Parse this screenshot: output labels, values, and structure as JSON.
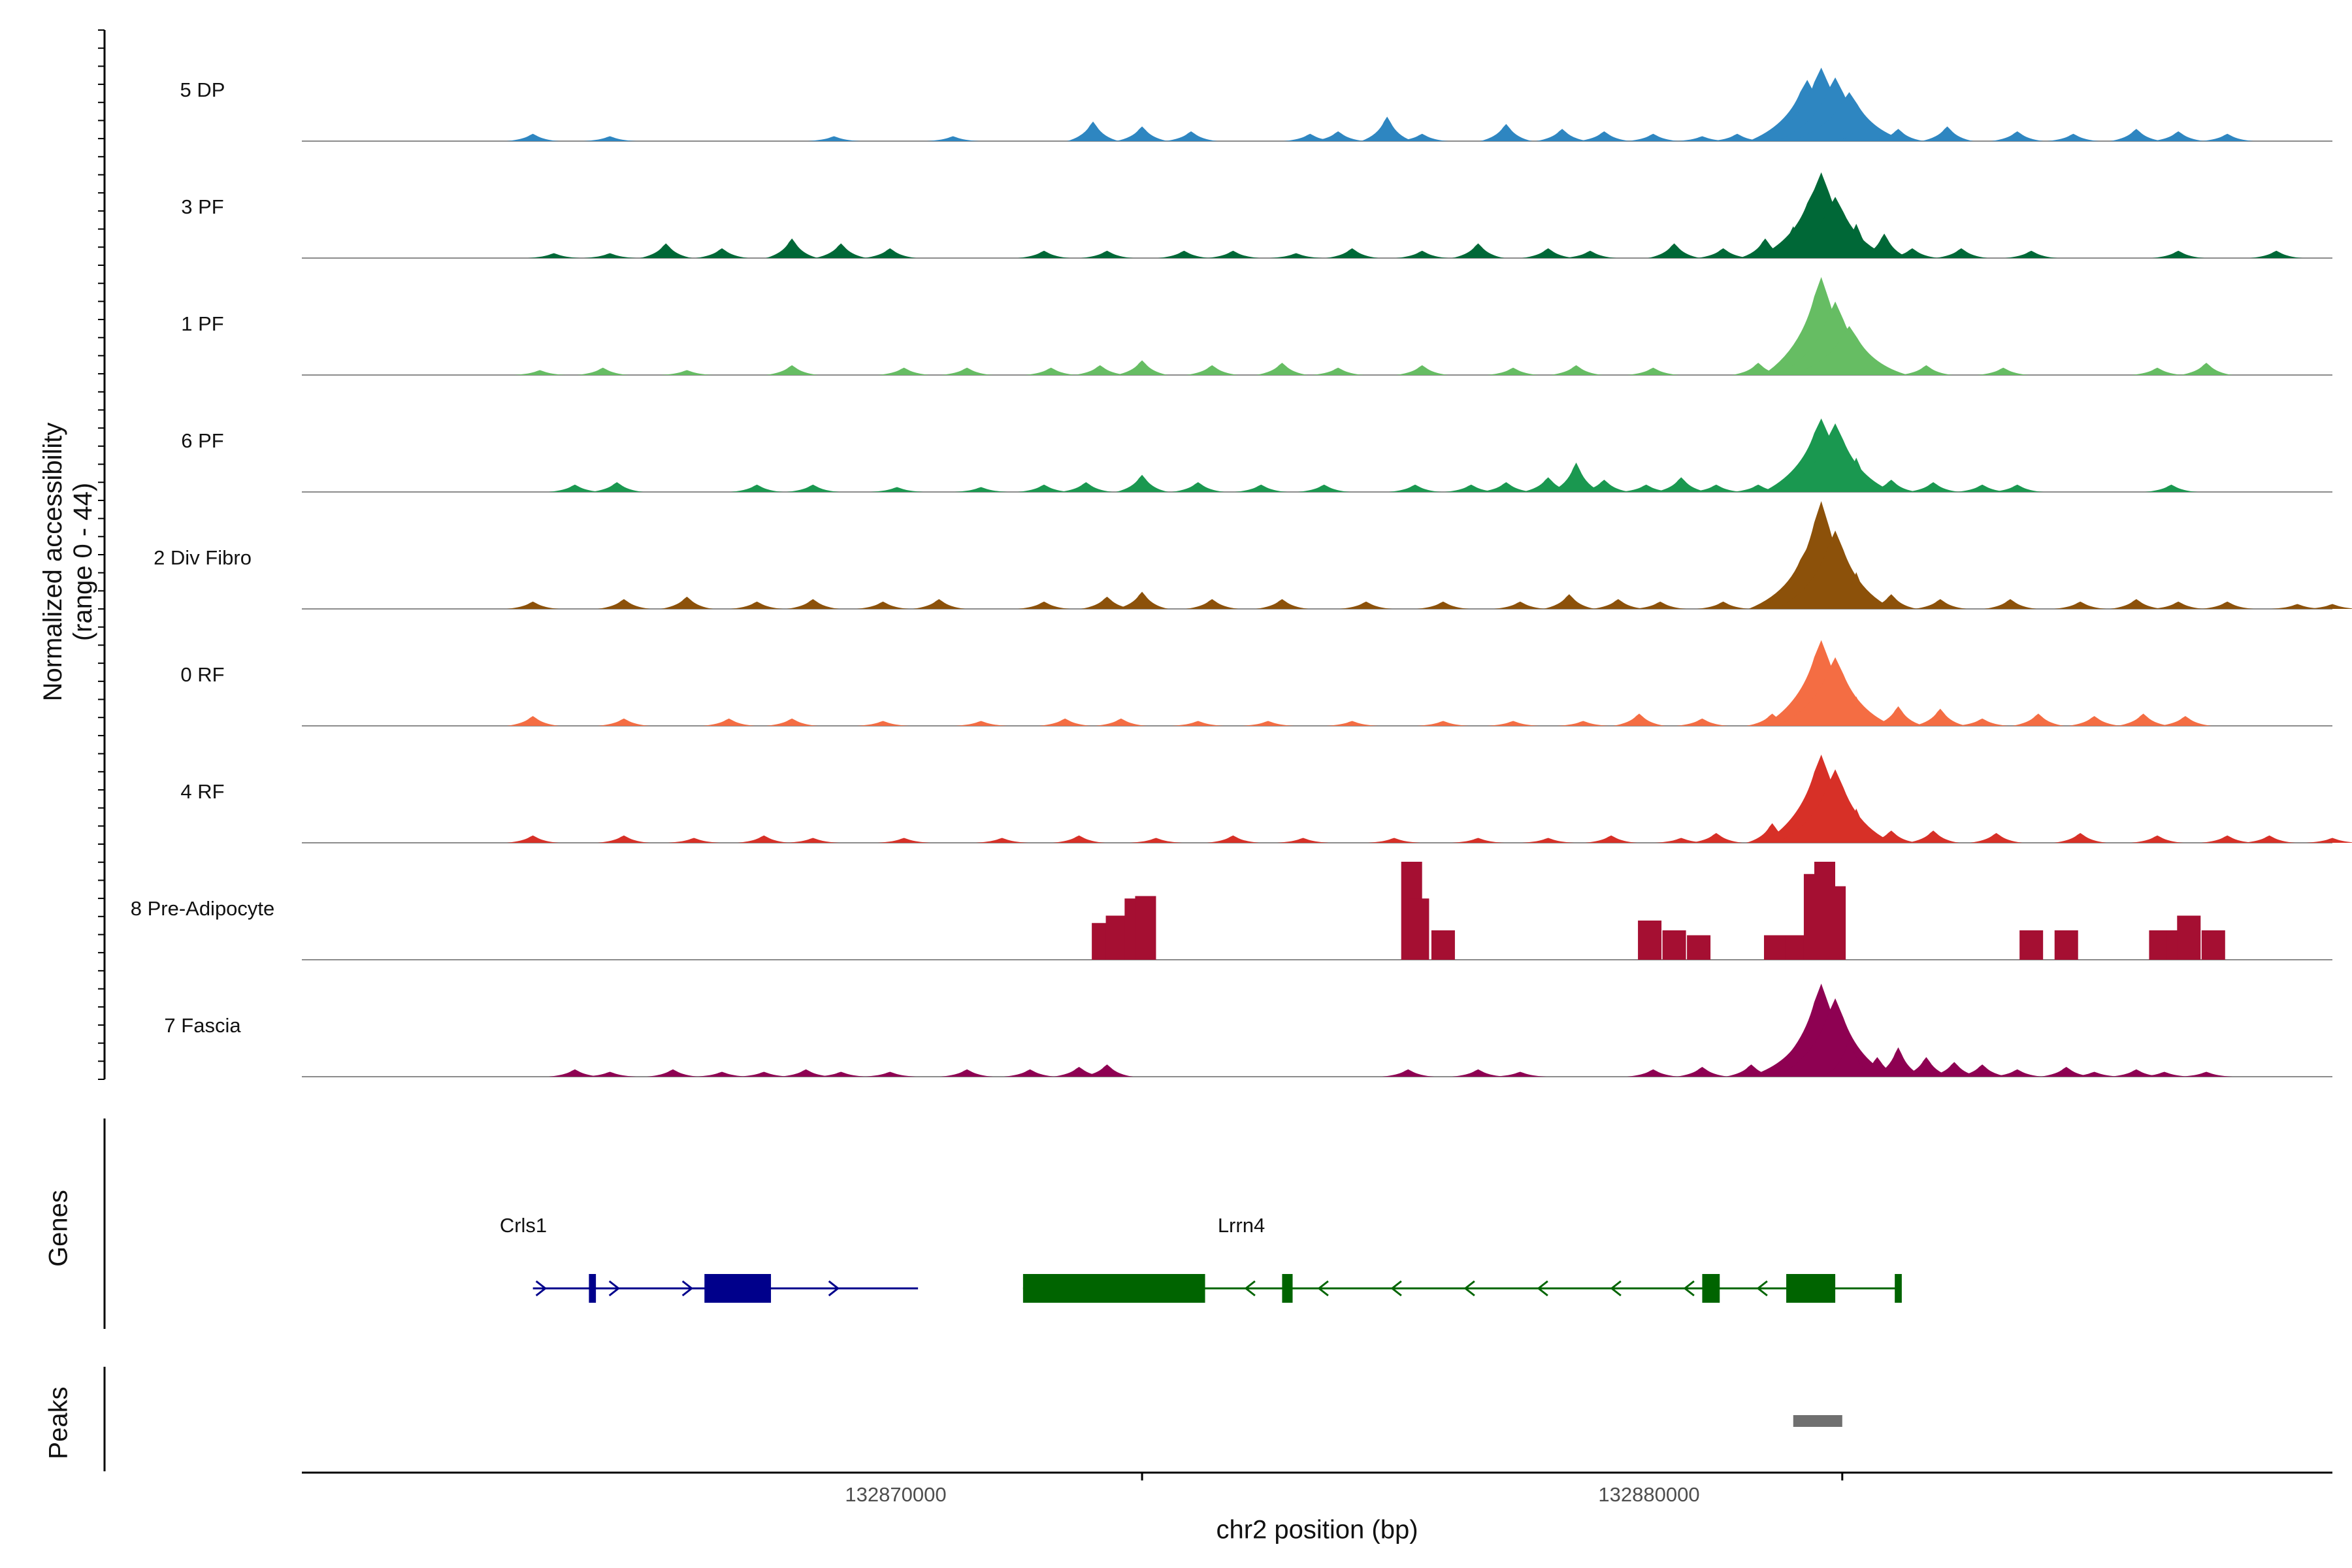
{
  "chart_data": {
    "type": "area",
    "title": "",
    "ylabel": "Normalized accessibility\n(range 0 - 44)",
    "ylabel_line1": "Normalized accessibility",
    "ylabel_line2": "(range 0 - 44)",
    "xlabel": "chr2 position (bp)",
    "xlim": [
      132858000,
      132887000
    ],
    "ylim": [
      0,
      44
    ],
    "xticks": [
      132870000,
      132880000
    ],
    "xtick_labels": [
      "132870000",
      "132880000"
    ],
    "series": [
      {
        "name": "5 DP",
        "color": "#2E86C1",
        "points": [
          [
            132861300,
            3
          ],
          [
            132862400,
            2
          ],
          [
            132865600,
            2
          ],
          [
            132867300,
            2
          ],
          [
            132869300,
            8
          ],
          [
            132870000,
            6
          ],
          [
            132870700,
            4
          ],
          [
            132872400,
            3
          ],
          [
            132872800,
            4
          ],
          [
            132873500,
            10
          ],
          [
            132874000,
            3
          ],
          [
            132875200,
            7
          ],
          [
            132876000,
            5
          ],
          [
            132876600,
            4
          ],
          [
            132877300,
            3
          ],
          [
            132878000,
            2
          ],
          [
            132878500,
            3
          ],
          [
            132879200,
            8
          ],
          [
            132879500,
            25
          ],
          [
            132879700,
            30
          ],
          [
            132879900,
            26
          ],
          [
            132880100,
            20
          ],
          [
            132880300,
            8
          ],
          [
            132880800,
            5
          ],
          [
            132881500,
            6
          ],
          [
            132882500,
            4
          ],
          [
            132883300,
            3
          ],
          [
            132884200,
            5
          ],
          [
            132884800,
            4
          ],
          [
            132885500,
            3
          ]
        ]
      },
      {
        "name": "3 PF",
        "color": "#006837",
        "points": [
          [
            132861600,
            2
          ],
          [
            132862400,
            2
          ],
          [
            132863200,
            6
          ],
          [
            132864000,
            4
          ],
          [
            132865000,
            8
          ],
          [
            132865700,
            6
          ],
          [
            132866400,
            4
          ],
          [
            132868600,
            3
          ],
          [
            132869500,
            3
          ],
          [
            132870600,
            3
          ],
          [
            132871300,
            3
          ],
          [
            132872200,
            2
          ],
          [
            132873000,
            4
          ],
          [
            132874000,
            3
          ],
          [
            132874800,
            6
          ],
          [
            132875800,
            4
          ],
          [
            132876400,
            3
          ],
          [
            132877600,
            6
          ],
          [
            132878300,
            4
          ],
          [
            132878900,
            8
          ],
          [
            132879300,
            13
          ],
          [
            132879600,
            28
          ],
          [
            132879700,
            35
          ],
          [
            132879900,
            25
          ],
          [
            132880200,
            14
          ],
          [
            132880600,
            10
          ],
          [
            132881000,
            4
          ],
          [
            132881700,
            4
          ],
          [
            132882700,
            3
          ],
          [
            132884800,
            3
          ],
          [
            132886200,
            3
          ]
        ]
      },
      {
        "name": "1 PF",
        "color": "#66BD63",
        "points": [
          [
            132861400,
            2
          ],
          [
            132862300,
            3
          ],
          [
            132863500,
            2
          ],
          [
            132865000,
            4
          ],
          [
            132866600,
            3
          ],
          [
            132867500,
            3
          ],
          [
            132868700,
            3
          ],
          [
            132869400,
            4
          ],
          [
            132870000,
            6
          ],
          [
            132871000,
            4
          ],
          [
            132872000,
            5
          ],
          [
            132872800,
            3
          ],
          [
            132874000,
            4
          ],
          [
            132875300,
            3
          ],
          [
            132876200,
            4
          ],
          [
            132877300,
            3
          ],
          [
            132878800,
            5
          ],
          [
            132879200,
            6
          ],
          [
            132879500,
            16
          ],
          [
            132879700,
            40
          ],
          [
            132879900,
            30
          ],
          [
            132880100,
            20
          ],
          [
            132880500,
            4
          ],
          [
            132881200,
            4
          ],
          [
            132882300,
            3
          ],
          [
            132884500,
            3
          ],
          [
            132885200,
            5
          ]
        ]
      },
      {
        "name": "6 PF",
        "color": "#1A9850",
        "points": [
          [
            132861900,
            3
          ],
          [
            132862500,
            4
          ],
          [
            132864500,
            3
          ],
          [
            132865300,
            3
          ],
          [
            132866500,
            2
          ],
          [
            132867700,
            2
          ],
          [
            132868600,
            3
          ],
          [
            132869200,
            4
          ],
          [
            132870000,
            7
          ],
          [
            132870800,
            4
          ],
          [
            132871700,
            3
          ],
          [
            132872600,
            3
          ],
          [
            132873900,
            3
          ],
          [
            132874700,
            3
          ],
          [
            132875200,
            4
          ],
          [
            132875800,
            6
          ],
          [
            132876200,
            12
          ],
          [
            132876600,
            5
          ],
          [
            132877200,
            3
          ],
          [
            132877700,
            6
          ],
          [
            132878200,
            3
          ],
          [
            132878800,
            3
          ],
          [
            132879300,
            9
          ],
          [
            132879700,
            30
          ],
          [
            132879900,
            28
          ],
          [
            132880200,
            14
          ],
          [
            132880700,
            5
          ],
          [
            132881300,
            4
          ],
          [
            132882000,
            3
          ],
          [
            132882500,
            3
          ],
          [
            132884700,
            3
          ]
        ]
      },
      {
        "name": "2 Div Fibro",
        "color": "#8C510A",
        "points": [
          [
            132861300,
            3
          ],
          [
            132862600,
            4
          ],
          [
            132863500,
            5
          ],
          [
            132864500,
            3
          ],
          [
            132865300,
            4
          ],
          [
            132866300,
            3
          ],
          [
            132867100,
            4
          ],
          [
            132868600,
            3
          ],
          [
            132869500,
            5
          ],
          [
            132870000,
            7
          ],
          [
            132871000,
            4
          ],
          [
            132872000,
            4
          ],
          [
            132873200,
            3
          ],
          [
            132874300,
            3
          ],
          [
            132875400,
            3
          ],
          [
            132876100,
            6
          ],
          [
            132876800,
            4
          ],
          [
            132877400,
            3
          ],
          [
            132878300,
            3
          ],
          [
            132879200,
            8
          ],
          [
            132879500,
            25
          ],
          [
            132879700,
            44
          ],
          [
            132879900,
            32
          ],
          [
            132880200,
            15
          ],
          [
            132880700,
            6
          ],
          [
            132881400,
            4
          ],
          [
            132882400,
            4
          ],
          [
            132883400,
            3
          ],
          [
            132884200,
            4
          ],
          [
            132884800,
            3
          ],
          [
            132885500,
            3
          ],
          [
            132886500,
            2
          ],
          [
            132887000,
            2
          ]
        ]
      },
      {
        "name": "0 RF",
        "color": "#F46D43",
        "points": [
          [
            132861300,
            4
          ],
          [
            132862600,
            3
          ],
          [
            132864100,
            3
          ],
          [
            132865000,
            3
          ],
          [
            132866300,
            2
          ],
          [
            132867700,
            2
          ],
          [
            132868900,
            3
          ],
          [
            132869700,
            3
          ],
          [
            132870800,
            2
          ],
          [
            132871800,
            2
          ],
          [
            132873000,
            2
          ],
          [
            132874300,
            2
          ],
          [
            132875300,
            2
          ],
          [
            132876300,
            2
          ],
          [
            132877100,
            5
          ],
          [
            132878000,
            3
          ],
          [
            132879000,
            5
          ],
          [
            132879400,
            12
          ],
          [
            132879700,
            35
          ],
          [
            132879900,
            28
          ],
          [
            132880200,
            12
          ],
          [
            132880800,
            8
          ],
          [
            132881400,
            7
          ],
          [
            132882000,
            3
          ],
          [
            132882800,
            5
          ],
          [
            132883600,
            4
          ],
          [
            132884300,
            5
          ],
          [
            132884900,
            4
          ]
        ]
      },
      {
        "name": "4 RF",
        "color": "#D73027",
        "points": [
          [
            132861300,
            3
          ],
          [
            132862600,
            3
          ],
          [
            132863600,
            2
          ],
          [
            132864600,
            3
          ],
          [
            132865300,
            2
          ],
          [
            132866600,
            2
          ],
          [
            132868000,
            2
          ],
          [
            132869100,
            3
          ],
          [
            132870200,
            2
          ],
          [
            132871300,
            3
          ],
          [
            132872300,
            2
          ],
          [
            132873600,
            2
          ],
          [
            132874800,
            2
          ],
          [
            132875800,
            2
          ],
          [
            132876700,
            3
          ],
          [
            132877700,
            2
          ],
          [
            132878200,
            4
          ],
          [
            132879000,
            8
          ],
          [
            132879400,
            12
          ],
          [
            132879700,
            36
          ],
          [
            132879900,
            30
          ],
          [
            132880200,
            14
          ],
          [
            132880700,
            5
          ],
          [
            132881300,
            5
          ],
          [
            132882200,
            4
          ],
          [
            132883400,
            4
          ],
          [
            132884500,
            3
          ],
          [
            132885500,
            3
          ],
          [
            132886100,
            3
          ],
          [
            132887000,
            2
          ]
        ]
      },
      {
        "name": "8 Pre-Adipocyte",
        "color": "#A50F32",
        "points": [
          [
            132869450,
            15
          ],
          [
            132869650,
            18
          ],
          [
            132869900,
            25
          ],
          [
            132870050,
            26
          ],
          [
            132873850,
            40
          ],
          [
            132873950,
            25
          ],
          [
            132874300,
            12
          ],
          [
            132877250,
            16
          ],
          [
            132877600,
            12
          ],
          [
            132877950,
            10
          ],
          [
            132879050,
            10
          ],
          [
            132879350,
            10
          ],
          [
            132879600,
            35
          ],
          [
            132879750,
            40
          ],
          [
            132879900,
            30
          ],
          [
            132882700,
            12
          ],
          [
            132883200,
            12
          ],
          [
            132884550,
            12
          ],
          [
            132884800,
            12
          ],
          [
            132884950,
            18
          ],
          [
            132885300,
            12
          ]
        ]
      },
      {
        "name": "7 Fascia",
        "color": "#8E0152",
        "points": [
          [
            132861900,
            3
          ],
          [
            132862400,
            2
          ],
          [
            132863300,
            3
          ],
          [
            132864000,
            2
          ],
          [
            132864600,
            2
          ],
          [
            132865200,
            3
          ],
          [
            132865700,
            2
          ],
          [
            132866400,
            2
          ],
          [
            132867500,
            3
          ],
          [
            132868400,
            3
          ],
          [
            132869100,
            4
          ],
          [
            132869500,
            5
          ],
          [
            132873800,
            3
          ],
          [
            132874800,
            3
          ],
          [
            132875400,
            2
          ],
          [
            132877300,
            3
          ],
          [
            132878000,
            4
          ],
          [
            132878700,
            5
          ],
          [
            132879200,
            8
          ],
          [
            132879500,
            20
          ],
          [
            132879700,
            38
          ],
          [
            132879900,
            32
          ],
          [
            132880100,
            15
          ],
          [
            132880500,
            8
          ],
          [
            132880800,
            12
          ],
          [
            132881200,
            8
          ],
          [
            132881600,
            6
          ],
          [
            132882000,
            5
          ],
          [
            132882500,
            3
          ],
          [
            132883200,
            4
          ],
          [
            132883600,
            2
          ],
          [
            132884200,
            3
          ],
          [
            132884600,
            2
          ],
          [
            132885200,
            2
          ]
        ]
      }
    ],
    "genes": [
      {
        "name": "Crls1",
        "strand": "+",
        "color": "#00008B",
        "start": 132861300,
        "end": 132866800,
        "exons": [
          [
            132862100,
            132862200
          ],
          [
            132863750,
            132864700
          ]
        ]
      },
      {
        "name": "Lrrn4",
        "strand": "-",
        "color": "#006400",
        "start": 132868300,
        "end": 132880800,
        "exons": [
          [
            132868300,
            132870900
          ],
          [
            132872000,
            132872150
          ],
          [
            132878000,
            132878250
          ],
          [
            132879200,
            132879900
          ],
          [
            132880750,
            132880850
          ]
        ]
      }
    ],
    "peaks": [
      {
        "start": 132879300,
        "end": 132880000,
        "color": "#707070"
      }
    ],
    "panel_labels": {
      "genes": "Genes",
      "peaks": "Peaks"
    }
  }
}
